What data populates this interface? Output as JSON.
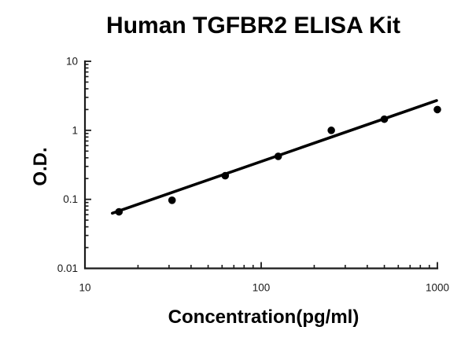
{
  "figure": {
    "background": "#ffffff"
  },
  "chart_data": {
    "type": "scatter",
    "title": "Human TGFBR2 ELISA Kit",
    "xlabel": "Concentration(pg/ml)",
    "ylabel": "O.D.",
    "x_scale": "log",
    "y_scale": "log",
    "xlim": [
      10,
      1000
    ],
    "ylim": [
      0.01,
      10
    ],
    "x_ticks": [
      10,
      100,
      1000
    ],
    "x_tick_labels": [
      "10",
      "100",
      "1000"
    ],
    "y_ticks": [
      10,
      1,
      0.1,
      0.01
    ],
    "y_tick_labels": [
      "10",
      "1",
      "0.1",
      "0.01"
    ],
    "grid": false,
    "legend": false,
    "series": [
      {
        "name": "standard-curve-points",
        "type": "scatter",
        "x": [
          15.6,
          31.2,
          62.5,
          125,
          250,
          500,
          1000
        ],
        "y": [
          0.066,
          0.097,
          0.22,
          0.42,
          1.0,
          1.45,
          2.0
        ]
      },
      {
        "name": "regression-fit-line",
        "type": "line",
        "x": [
          14.3,
          990
        ],
        "y": [
          0.063,
          2.7
        ]
      }
    ],
    "colors": {
      "points": "#000000",
      "line": "#000000",
      "axis": "#1a1a1a",
      "tick_text": "#1a1a1a",
      "title": "#000000"
    }
  }
}
